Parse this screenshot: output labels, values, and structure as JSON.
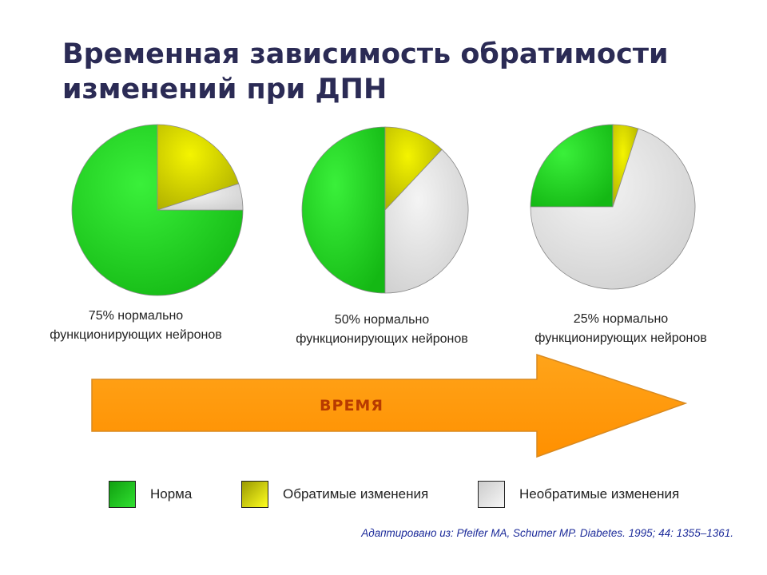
{
  "title": {
    "line1": "Временная зависимость обратимости",
    "line2": "изменений при ДПН"
  },
  "chart_data": {
    "type": "pie",
    "series": [
      {
        "name": "Норма",
        "color": "#22d022"
      },
      {
        "name": "Обратимые изменения",
        "color": "#d4d400"
      },
      {
        "name": "Необратимые изменения",
        "color": "#e2e2e2"
      }
    ],
    "pies": [
      {
        "values": [
          75,
          20,
          5
        ],
        "caption_line1": "75% нормально",
        "caption_line2": "функционирующих нейронов"
      },
      {
        "values": [
          50,
          12,
          38
        ],
        "caption_line1": "50% нормально",
        "caption_line2": "функционирующих нейронов"
      },
      {
        "values": [
          25,
          5,
          70
        ],
        "caption_line1": "25% нормально",
        "caption_line2": "функционирующих нейронов"
      }
    ]
  },
  "arrow": {
    "label": "ВРЕМЯ",
    "color": "#ff9900"
  },
  "legend": {
    "items": [
      {
        "label": "Норма",
        "icon": "green-swatch"
      },
      {
        "label": "Обратимые изменения",
        "icon": "yellow-swatch"
      },
      {
        "label": "Необратимые изменения",
        "icon": "gray-swatch"
      }
    ]
  },
  "source": "Адаптировано из: Pfeifer MA, Schumer MP. Diabetes. 1995; 44: 1355–1361."
}
